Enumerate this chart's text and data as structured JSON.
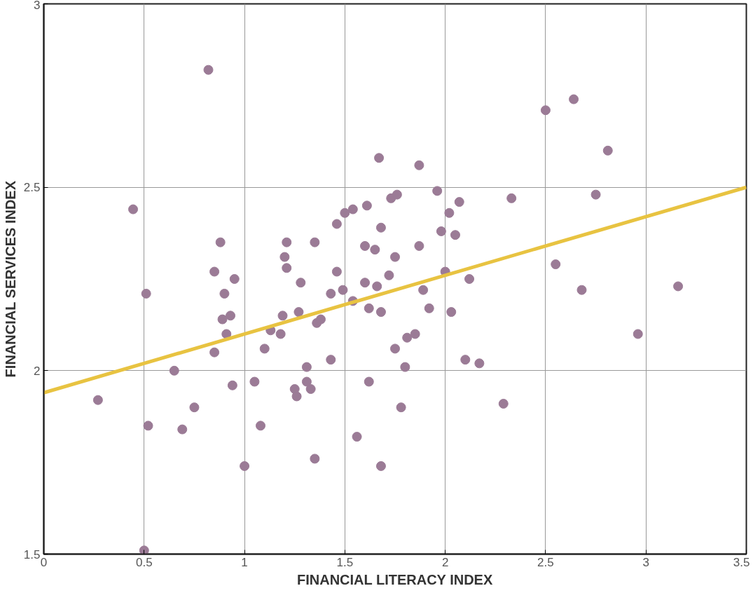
{
  "chart_data": {
    "type": "scatter",
    "xlabel": "FINANCIAL LITERACY INDEX",
    "ylabel": "FINANCIAL SERVICES INDEX",
    "xlim": [
      0,
      3.5
    ],
    "xticks": [
      0,
      0.5,
      1,
      1.5,
      2,
      2.5,
      3,
      3.5
    ],
    "ylim": [
      1.5,
      3
    ],
    "yticks": [
      1.5,
      2,
      2.5,
      3
    ],
    "grid": true,
    "series": [
      {
        "marker": "circle",
        "color": "#9b7b96",
        "x": [
          0.27,
          0.445,
          0.51,
          0.52,
          0.5,
          0.65,
          0.69,
          0.75,
          0.82,
          0.85,
          0.88,
          0.85,
          0.89,
          0.9,
          0.91,
          0.93,
          0.95,
          0.94,
          1.0,
          1.05,
          1.08,
          1.1,
          1.13,
          1.18,
          1.19,
          1.2,
          1.21,
          1.21,
          1.25,
          1.26,
          1.28,
          1.27,
          1.31,
          1.31,
          1.33,
          1.35,
          1.36,
          1.38,
          1.35,
          1.43,
          1.43,
          1.46,
          1.46,
          1.49,
          1.5,
          1.54,
          1.54,
          1.56,
          1.6,
          1.6,
          1.61,
          1.62,
          1.62,
          1.65,
          1.66,
          1.67,
          1.68,
          1.68,
          1.68,
          1.72,
          1.73,
          1.75,
          1.75,
          1.76,
          1.78,
          1.8,
          1.81,
          1.85,
          1.87,
          1.87,
          1.89,
          1.92,
          1.96,
          1.98,
          2.0,
          2.02,
          2.03,
          2.05,
          2.07,
          2.1,
          2.12,
          2.17,
          2.29,
          2.33,
          2.5,
          2.55,
          2.64,
          2.68,
          2.75,
          2.81,
          2.96,
          3.16
        ],
        "values": [
          1.92,
          2.44,
          2.21,
          1.85,
          1.51,
          2.0,
          1.84,
          1.9,
          2.82,
          2.27,
          2.35,
          2.05,
          2.14,
          2.21,
          2.1,
          2.15,
          2.25,
          1.96,
          1.74,
          1.97,
          1.85,
          2.06,
          2.11,
          2.1,
          2.15,
          2.31,
          2.28,
          2.35,
          1.95,
          1.93,
          2.24,
          2.16,
          2.01,
          1.97,
          1.95,
          2.35,
          2.13,
          2.14,
          1.76,
          2.21,
          2.03,
          2.4,
          2.27,
          2.22,
          2.43,
          2.44,
          2.19,
          1.82,
          2.34,
          2.24,
          2.45,
          1.97,
          2.17,
          2.33,
          2.23,
          2.58,
          2.16,
          2.39,
          1.74,
          2.26,
          2.47,
          2.06,
          2.31,
          2.48,
          1.9,
          2.01,
          2.09,
          2.1,
          2.56,
          2.34,
          2.22,
          2.17,
          2.49,
          2.38,
          2.27,
          2.43,
          2.16,
          2.37,
          2.46,
          2.03,
          2.25,
          2.02,
          1.91,
          2.47,
          2.71,
          2.29,
          2.74,
          2.22,
          2.48,
          2.6,
          2.1,
          2.23
        ]
      },
      {
        "type": "line",
        "color": "#e8c341",
        "x": [
          0,
          3.5
        ],
        "values": [
          1.94,
          2.5
        ]
      }
    ]
  }
}
